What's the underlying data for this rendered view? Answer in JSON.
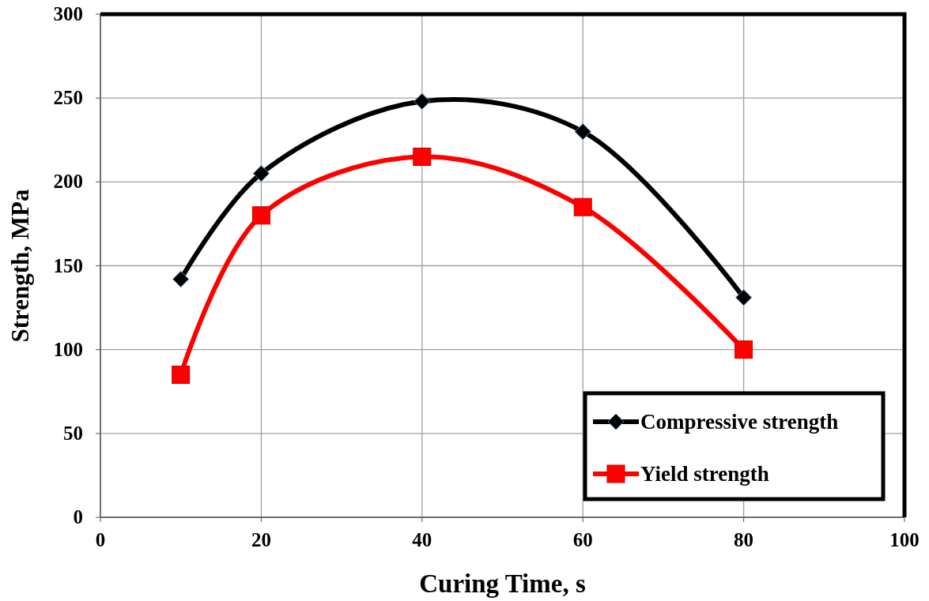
{
  "chart_data": {
    "type": "line",
    "xlabel": "Curing Time, s",
    "ylabel": "Strength, MPa",
    "x": [
      10,
      20,
      40,
      60,
      80
    ],
    "series": [
      {
        "name": "Compressive strength",
        "color": "#000000",
        "marker": "diamond",
        "values": [
          142,
          205,
          248,
          230,
          131
        ]
      },
      {
        "name": "Yield strength",
        "color": "#ff0000",
        "marker": "square",
        "values": [
          85,
          180,
          215,
          185,
          100
        ]
      }
    ],
    "xlim": [
      0,
      100
    ],
    "xticks": [
      0,
      20,
      40,
      60,
      80,
      100
    ],
    "ylim": [
      0,
      300
    ],
    "yticks": [
      0,
      50,
      100,
      150,
      200,
      250,
      300
    ],
    "grid": true,
    "legend": "bottom right",
    "line_style": "solid"
  }
}
